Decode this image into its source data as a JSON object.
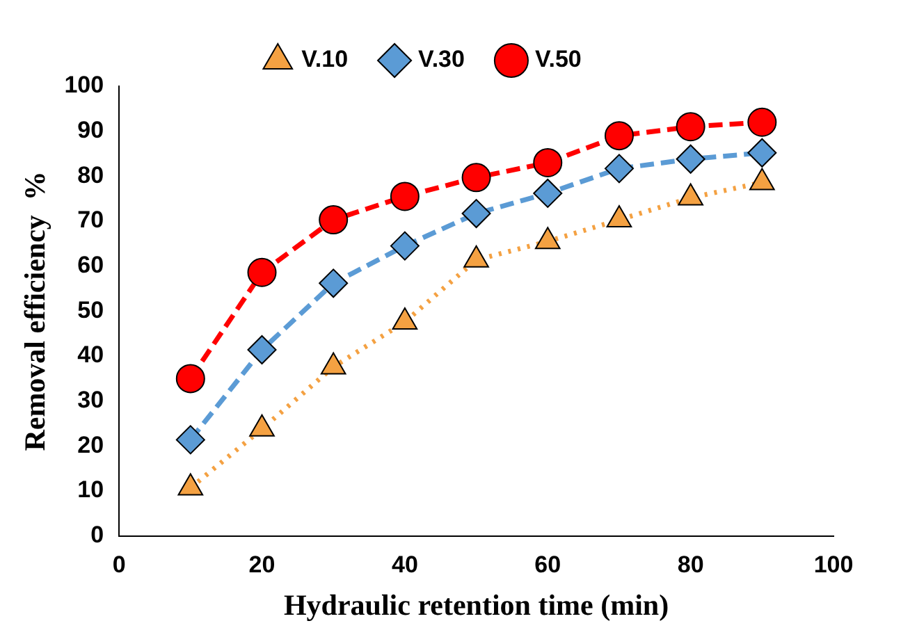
{
  "chart_data": {
    "type": "line",
    "xlabel": "Hydraulic retention time (min)",
    "ylabel": "Removal efficiency  %",
    "x": [
      10,
      20,
      30,
      40,
      50,
      60,
      70,
      80,
      90
    ],
    "xlim": [
      0,
      100
    ],
    "xticks": [
      0,
      20,
      40,
      60,
      80,
      100
    ],
    "ylim": [
      0,
      100
    ],
    "yticks": [
      0,
      10,
      20,
      30,
      40,
      50,
      60,
      70,
      80,
      90,
      100
    ],
    "grid": false,
    "legend": "top",
    "series": [
      {
        "name": "V.10",
        "color": "#f4a142",
        "marker": "triangle",
        "line_style": "dotted",
        "values": [
          10.7,
          23.8,
          37.6,
          47.6,
          61.4,
          65.5,
          70.3,
          75.2,
          78.6
        ]
      },
      {
        "name": "V.30",
        "color": "#5b9bd5",
        "marker": "diamond",
        "line_style": "dashed",
        "values": [
          21.4,
          41.4,
          56.2,
          64.5,
          71.7,
          76.2,
          81.7,
          83.8,
          85.2
        ]
      },
      {
        "name": "V.50",
        "color": "#ff0000",
        "marker": "circle",
        "line_style": "dashed",
        "values": [
          35,
          58.6,
          70.3,
          75.5,
          79.7,
          83,
          89,
          91,
          92
        ]
      }
    ]
  }
}
